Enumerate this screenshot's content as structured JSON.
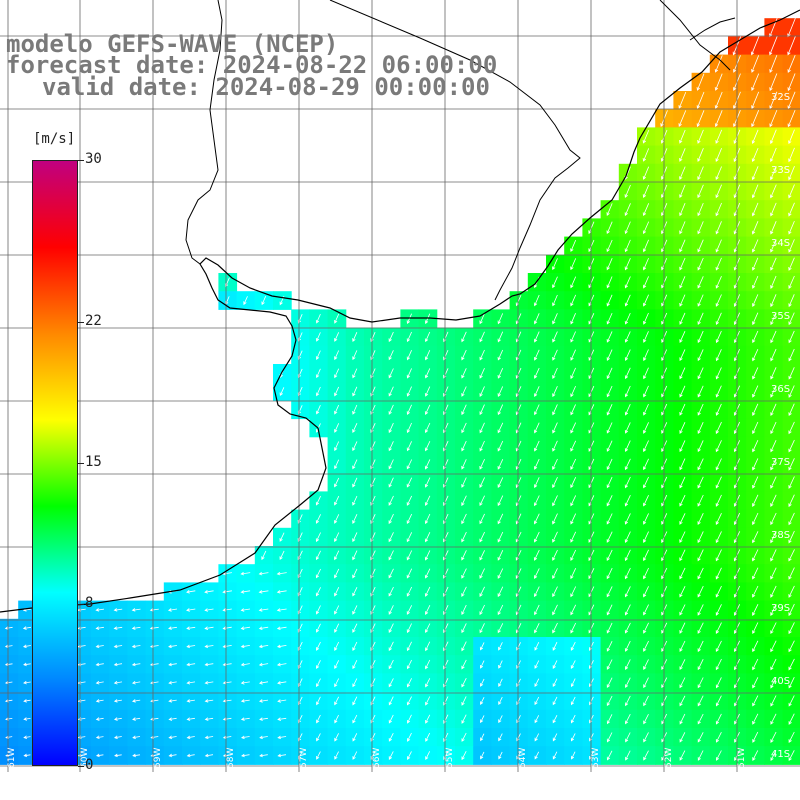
{
  "title": {
    "line1": "modelo GEFS-WAVE (NCEP)",
    "line2": "forecast date: 2024-08-22 06:00:00",
    "line3": "valid date: 2024-08-29 00:00:00"
  },
  "colorbar": {
    "unit": "[m/s]",
    "min": 0,
    "max": 30,
    "ticks": [
      "30",
      "22",
      "15",
      "8",
      "0"
    ],
    "tick_values": [
      30,
      22,
      15,
      8,
      0
    ],
    "colors": [
      "#0000ff",
      "#0088ff",
      "#00ffff",
      "#00ff00",
      "#ffff00",
      "#ff8800",
      "#ff0000",
      "#c00080"
    ]
  },
  "map": {
    "parameter": "wind speed and direction",
    "lat_labels": [
      "32S",
      "33S",
      "34S",
      "35S",
      "36S",
      "37S",
      "38S",
      "39S",
      "40S",
      "41S"
    ],
    "lon_labels": [
      "61W",
      "60W",
      "59W",
      "58W",
      "57W",
      "56W",
      "55W",
      "54W",
      "53W",
      "52W",
      "51W"
    ],
    "land_color": "#ffffff",
    "grid_color": "#666666",
    "coast_color": "#000000",
    "arrow_color": "#ffffff"
  }
}
